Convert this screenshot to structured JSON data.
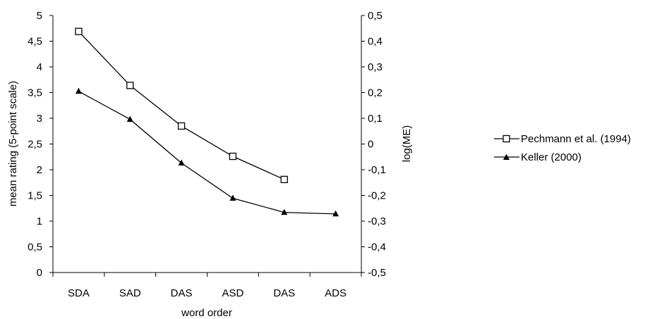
{
  "chart_data": {
    "type": "line",
    "title": "",
    "xlabel": "word order",
    "ylabel": "mean rating (5-point scale)",
    "y2label": "log(ME)",
    "categories": [
      "SDA",
      "SAD",
      "DAS",
      "ASD",
      "DAS",
      "ADS"
    ],
    "ylim": [
      0,
      5
    ],
    "yticks": [
      "0",
      "0,5",
      "1",
      "1,5",
      "2",
      "2,5",
      "3",
      "3,5",
      "4",
      "4,5",
      "5"
    ],
    "y2lim": [
      -0.5,
      0.5
    ],
    "y2ticks": [
      "-0,5",
      "-0,4",
      "-0,3",
      "-0,2",
      "-0,1",
      "0",
      "0,1",
      "0,2",
      "0,3",
      "0,4",
      "0,5"
    ],
    "grid": false,
    "legend": "right",
    "series": [
      {
        "name": "Pechmann et al. (1994)",
        "axis": "left",
        "marker": "open-square",
        "values": [
          4.69,
          3.64,
          2.85,
          2.26,
          1.81,
          null
        ]
      },
      {
        "name": "Keller (2000)",
        "axis": "right",
        "marker": "filled-triangle",
        "values": [
          0.205,
          0.096,
          -0.074,
          -0.211,
          -0.266,
          -0.272
        ]
      }
    ],
    "colors": {
      "line": "#000000",
      "background": "#ffffff"
    }
  }
}
